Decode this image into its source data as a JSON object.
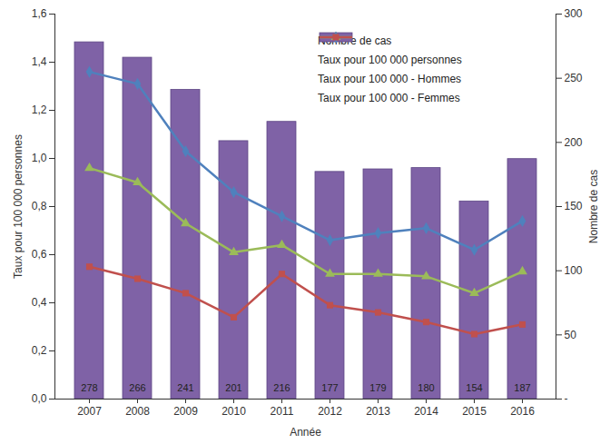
{
  "chart_data": {
    "type": "bar",
    "xlabel": "Année",
    "ylabel": "Taux pour 100 000 personnes",
    "y2label": "Nombre de cas",
    "categories": [
      "2007",
      "2008",
      "2009",
      "2010",
      "2011",
      "2012",
      "2013",
      "2014",
      "2015",
      "2016"
    ],
    "ylim": [
      0,
      1.6
    ],
    "yticks": [
      {
        "value": 0,
        "label": "0,0"
      },
      {
        "value": 0.2,
        "label": "0,2"
      },
      {
        "value": 0.4,
        "label": "0,4"
      },
      {
        "value": 0.6,
        "label": "0,6"
      },
      {
        "value": 0.8,
        "label": "0,8"
      },
      {
        "value": 1.0,
        "label": "1,0"
      },
      {
        "value": 1.2,
        "label": "1,2"
      },
      {
        "value": 1.4,
        "label": "1,4"
      },
      {
        "value": 1.6,
        "label": "1,6"
      }
    ],
    "y2lim": [
      0,
      300
    ],
    "y2ticks": [
      {
        "value": 0,
        "label": "-"
      },
      50,
      100,
      150,
      200,
      250,
      300
    ],
    "legend": "top-right",
    "data_labels": true,
    "series": [
      {
        "name": "Nombre de cas",
        "type": "bar",
        "axis": "y2",
        "color": "#7f62a6",
        "values": [
          278,
          266,
          241,
          201,
          216,
          177,
          179,
          180,
          154,
          187
        ]
      },
      {
        "name": "Taux pour 100 000 personnes",
        "type": "line",
        "color": "#9bbb59",
        "marker": "triangle",
        "values": [
          0.96,
          0.9,
          0.73,
          0.61,
          0.64,
          0.52,
          0.52,
          0.51,
          0.44,
          0.53
        ]
      },
      {
        "name": "Taux pour 100 000 - Hommes",
        "type": "line",
        "color": "#4f81bd",
        "marker": "diamond",
        "values": [
          1.36,
          1.31,
          1.03,
          0.86,
          0.76,
          0.66,
          0.69,
          0.71,
          0.62,
          0.74
        ]
      },
      {
        "name": "Taux pour 100 000 - Femmes",
        "type": "line",
        "color": "#c0504d",
        "marker": "square",
        "values": [
          0.55,
          0.5,
          0.44,
          0.34,
          0.52,
          0.39,
          0.36,
          0.32,
          0.27,
          0.31
        ]
      }
    ]
  }
}
